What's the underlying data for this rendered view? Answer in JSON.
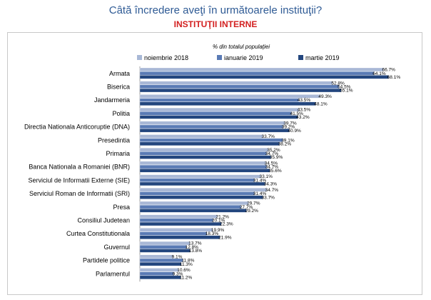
{
  "header": {
    "title": "Câtă încredere aveţi în următoarele instituţii?",
    "subtitle": "INSTITUŢII INTERNE"
  },
  "chart_data": {
    "type": "bar",
    "orientation": "horizontal",
    "unit_label": "% din totalul populaţiei",
    "categories": [
      "Armata",
      "Biserica",
      "Jandarmeria",
      "Politia",
      "Directia Nationala Anticoruptie (DNA)",
      "Presedintia",
      "Primaria",
      "Banca Nationala a Romaniei (BNR)",
      "Serviciul de Informatii Externe (SIE)",
      "Serviciul Roman de Informatii (SRI)",
      "Presa",
      "Consiliul Judetean",
      "Curtea Constitutionala",
      "Guvernul",
      "Partidele politice",
      "Parlamentul"
    ],
    "series": [
      {
        "name": "noiembrie 2018",
        "color": "#a9b8d6",
        "values": [
          66.7,
          52.8,
          49.3,
          43.5,
          39.7,
          33.7,
          35.2,
          34.5,
          33.1,
          34.7,
          29.7,
          21.2,
          19.9,
          13.7,
          9.1,
          10.6
        ]
      },
      {
        "name": "ianuarie 2019",
        "color": "#5a7bb5",
        "values": [
          64.1,
          54.5,
          43.5,
          41.5,
          39.2,
          39.1,
          34.7,
          34.7,
          31.4,
          31.4,
          27.7,
          20.1,
          18.3,
          12.8,
          11.8,
          9.3
        ]
      },
      {
        "name": "martie 2019",
        "color": "#23467e",
        "values": [
          68.1,
          55.1,
          48.1,
          43.2,
          40.9,
          38.2,
          35.9,
          35.6,
          34.3,
          33.7,
          29.2,
          22.3,
          21.9,
          13.8,
          11.3,
          11.2
        ]
      }
    ],
    "xlim": [
      0,
      100
    ],
    "value_suffix": "%",
    "legend": "top",
    "grid": false
  }
}
